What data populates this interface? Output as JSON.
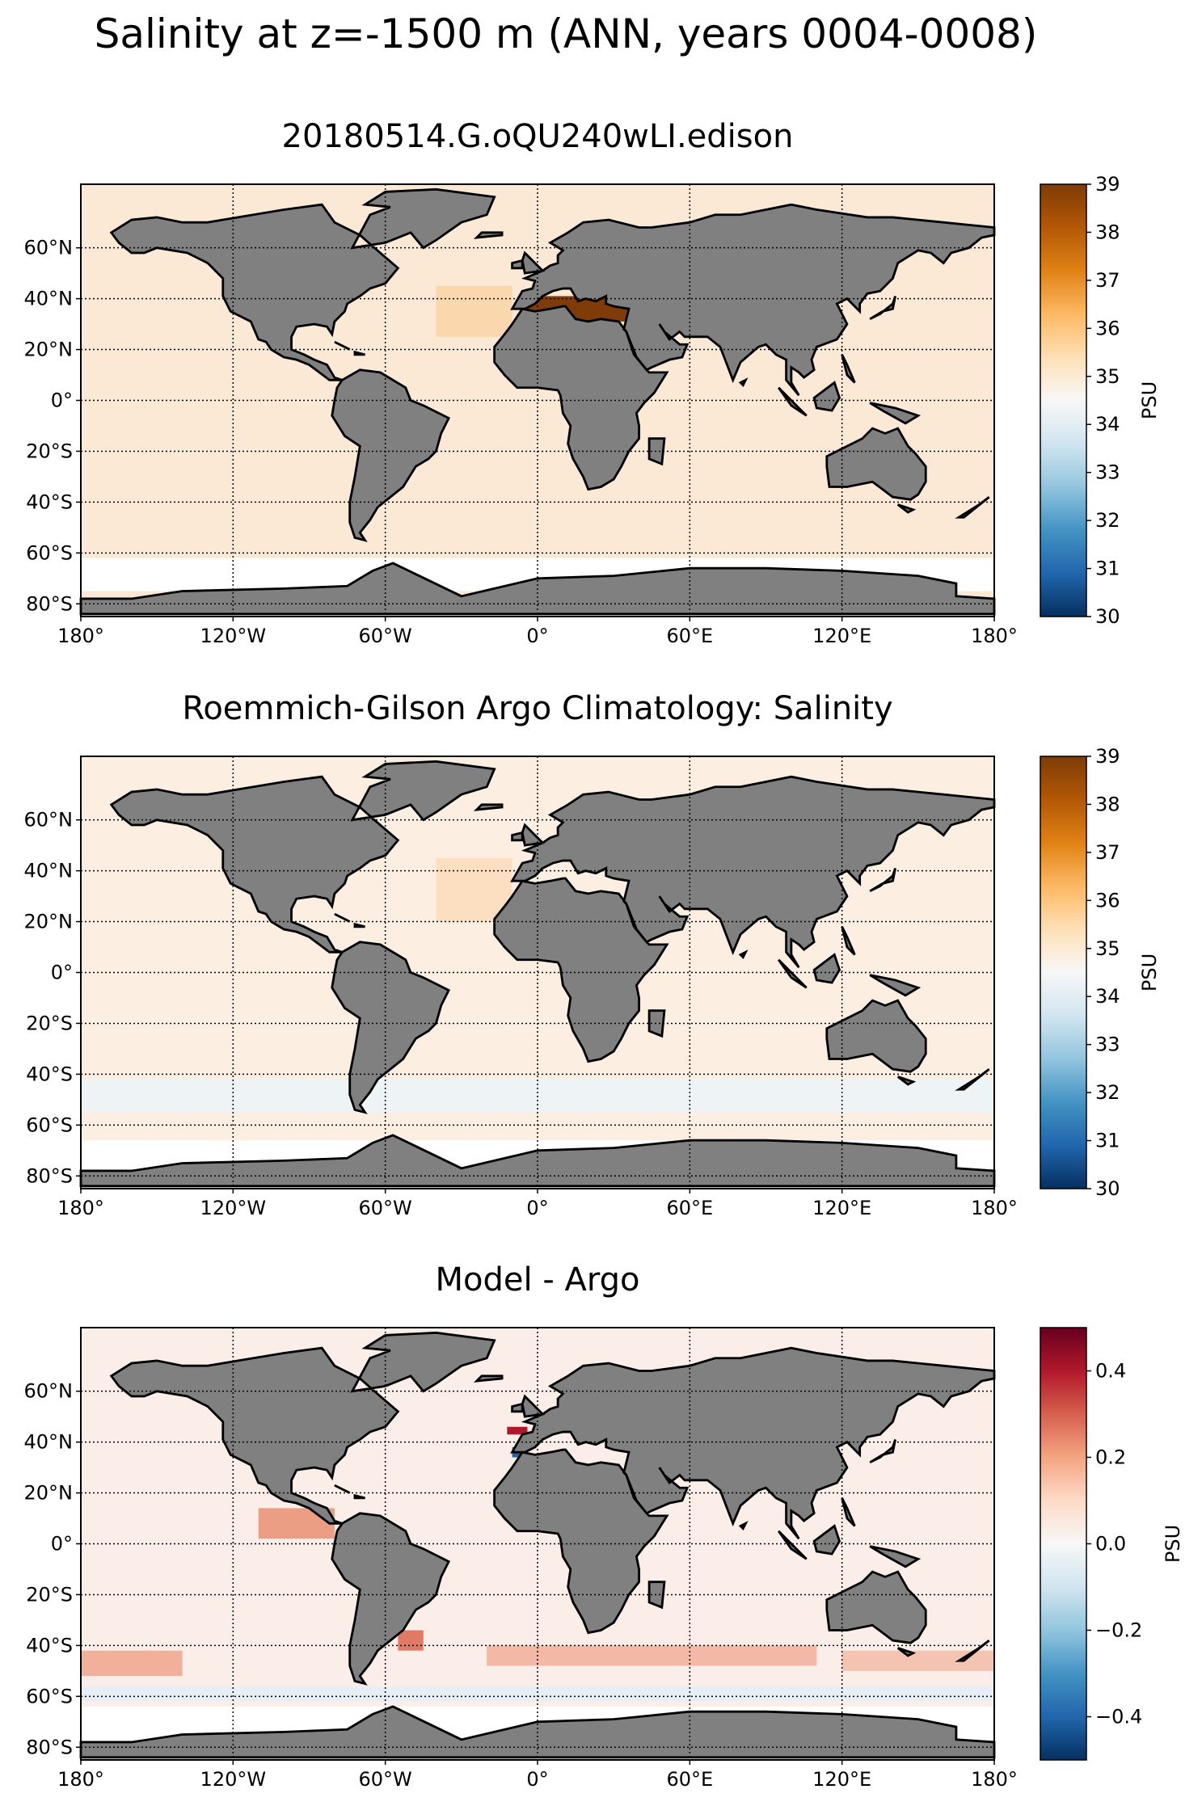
{
  "suptitle": "Salinity at z=-1500 m (ANN, years 0004-0008)",
  "lon_ticks": [
    "180°",
    "120°W",
    "60°W",
    "0°",
    "60°E",
    "120°E",
    "180°"
  ],
  "lat_ticks": [
    "60°N",
    "40°N",
    "20°N",
    "0°",
    "20°S",
    "40°S",
    "60°S",
    "80°S"
  ],
  "chart_data": [
    {
      "type": "heatmap",
      "title": "20180514.G.oQU240wLI.edison",
      "xlim": [
        -180,
        180
      ],
      "ylim": [
        -85,
        85
      ],
      "grid": true,
      "colorbar": {
        "label": "PSU",
        "min": 30,
        "max": 39,
        "ticks": [
          "30",
          "31",
          "32",
          "33",
          "34",
          "35",
          "36",
          "37",
          "38",
          "39"
        ],
        "colormap": [
          "#053061",
          "#2166ac",
          "#4393c3",
          "#92c5de",
          "#d1e5f0",
          "#f7f7f7",
          "#fee0b6",
          "#fdb863",
          "#e08214",
          "#b35806",
          "#7f3b08"
        ]
      },
      "land_color": "#808080",
      "ocean_fill": "#fbe9d6",
      "features": [
        {
          "region": "Mediterranean Sea",
          "value": 38.8
        },
        {
          "region": "North Atlantic",
          "value": 35.3
        }
      ]
    },
    {
      "type": "heatmap",
      "title": "Roemmich-Gilson Argo Climatology: Salinity",
      "xlim": [
        -180,
        180
      ],
      "ylim": [
        -85,
        85
      ],
      "grid": true,
      "colorbar": {
        "label": "PSU",
        "min": 30,
        "max": 39,
        "ticks": [
          "30",
          "31",
          "32",
          "33",
          "34",
          "35",
          "36",
          "37",
          "38",
          "39"
        ],
        "colormap": [
          "#053061",
          "#2166ac",
          "#4393c3",
          "#92c5de",
          "#d1e5f0",
          "#f7f7f7",
          "#fee0b6",
          "#fdb863",
          "#e08214",
          "#b35806",
          "#7f3b08"
        ]
      },
      "land_color": "#808080",
      "ocean_fill": "#fcefe2",
      "features": [
        {
          "region": "North Atlantic",
          "value": 35.2
        },
        {
          "region": "Southern Ocean",
          "value": 34.7
        }
      ]
    },
    {
      "type": "heatmap",
      "title": "Model - Argo",
      "xlim": [
        -180,
        180
      ],
      "ylim": [
        -85,
        85
      ],
      "grid": true,
      "colorbar": {
        "label": "PSU",
        "min": -0.5,
        "max": 0.5,
        "ticks": [
          "−0.4",
          "−0.2",
          "0.0",
          "0.2",
          "0.4"
        ],
        "tick_values": [
          -0.4,
          -0.2,
          0.0,
          0.2,
          0.4
        ],
        "colormap": [
          "#053061",
          "#2166ac",
          "#4393c3",
          "#92c5de",
          "#d1e5f0",
          "#f7f7f7",
          "#fddbc7",
          "#f4a582",
          "#d6604d",
          "#b2182b",
          "#67001f"
        ]
      },
      "land_color": "#808080",
      "ocean_fill": "#fbeee8",
      "features": [
        {
          "region": "Eastern Tropical Pacific",
          "value": 0.25
        },
        {
          "region": "Southern Ocean band 40-50S",
          "value": 0.2
        },
        {
          "region": "Gulf of Cadiz",
          "value": -0.4
        },
        {
          "region": "Bay of Biscay",
          "value": 0.4
        }
      ]
    }
  ]
}
